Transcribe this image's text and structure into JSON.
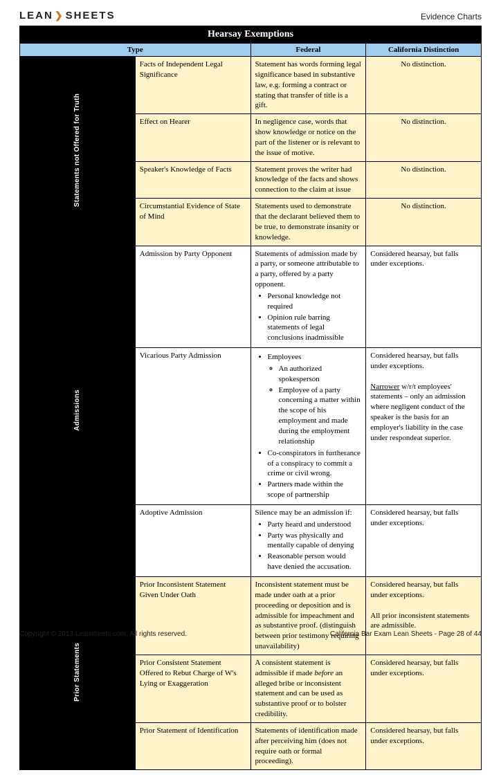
{
  "brand": {
    "left": "LEAN",
    "right": "SHEETS"
  },
  "doc_label": "Evidence Charts",
  "title": "Hearsay Exemptions",
  "columns": {
    "type": "Type",
    "federal": "Federal",
    "california": "California Distinction"
  },
  "sections": [
    {
      "label": "Statements not Offered for Truth",
      "shade": "yellow",
      "rows": [
        {
          "type": "Facts of Independent Legal Significance",
          "federal": "Statement has words forming legal significance based in substantive law, e.g. forming a contract or stating that transfer of title is a gift.",
          "california": "No distinction.",
          "california_center": true
        },
        {
          "type": "Effect on Hearer",
          "federal": "In negligence case, words that show knowledge or notice on the part of the listener or is relevant to the issue of motive.",
          "california": "No distinction.",
          "california_center": true
        },
        {
          "type": "Speaker's Knowledge of Facts",
          "federal": "Statement proves the writer had knowledge of the facts and shows connection to the claim at issue",
          "california": "No distinction.",
          "california_center": true
        },
        {
          "type": "Circumstantial Evidence of State of Mind",
          "federal": "Statements used to demonstrate that the declarant believed them to be true, to demonstrate insanity or knowledge.",
          "california": "No distinction.",
          "california_center": true
        }
      ]
    },
    {
      "label": "Admissions",
      "shade": "white",
      "rows": [
        {
          "type": "Admission by Party Opponent",
          "federal_lead": "Statements of admission made by a party, or someone attributable to a party, offered by a party opponent.",
          "federal_bullets": [
            "Personal knowledge not required",
            "Opinion rule barring statements of legal conclusions inadmissible"
          ],
          "california": "Considered hearsay, but falls under exceptions."
        },
        {
          "type": "Vicarious Party Admission",
          "federal_bullets": [
            {
              "text": "Employees",
              "sub": [
                "An authorized spokesperson",
                "Employee of a party concerning a matter within the scope of his employment and made during the employment relationship"
              ]
            },
            "Co-conspirators in furtherance of a conspiracy to commit a crime or civil wrong.",
            "Partners made within the scope of partnership"
          ],
          "california_html": "Considered hearsay, but falls under exceptions.<br><br><span class=\"u\">Narrower</span> w/r/t employees' statements – only an admission where negligent conduct of the speaker is the basis for an employer's liability in the case under respondeat superior."
        },
        {
          "type": "Adoptive Admission",
          "federal_lead": "Silence may be an admission if:",
          "federal_bullets": [
            "Party heard and understood",
            "Party was physically and mentally capable of denying",
            "Reasonable person would have denied the accusation."
          ],
          "california": "Considered hearsay, but falls under exceptions."
        }
      ]
    },
    {
      "label": "Prior Statements",
      "shade": "yellow",
      "rows": [
        {
          "type": "Prior Inconsistent Statement Given Under Oath",
          "federal": "Inconsistent statement must be made under oath at a prior proceeding or deposition and is admissible for impeachment and as substantive proof. (distinguish between prior testimony requiring unavailability)",
          "california_html": "Considered hearsay, but falls under exceptions.<br><br>All prior inconsistent statements are admissible."
        },
        {
          "type": "Prior Consistent Statement Offered to Rebut Charge of W's Lying or Exaggeration",
          "federal_html": "A consistent statement is admissible if made <span class=\"i\">before</span> an alleged bribe or inconsistent statement and can be used as substantive proof or to bolster credibility.",
          "california": "Considered hearsay, but falls under exceptions."
        },
        {
          "type": "Prior Statement of Identification",
          "federal": "Statements of identification made after perceiving him (does not require oath or formal proceeding).",
          "california": "Considered hearsay, but falls under exceptions."
        }
      ]
    }
  ],
  "footer": {
    "left": "Copyright © 2013 Leansheets.com.   All rights reserved.",
    "right": "California Bar Exam Lean Sheets - Page 28 of 44"
  },
  "colors": {
    "header_blue": "#9ecdf0",
    "row_yellow": "#fff4c9",
    "row_white": "#ffffff",
    "black": "#000000"
  }
}
